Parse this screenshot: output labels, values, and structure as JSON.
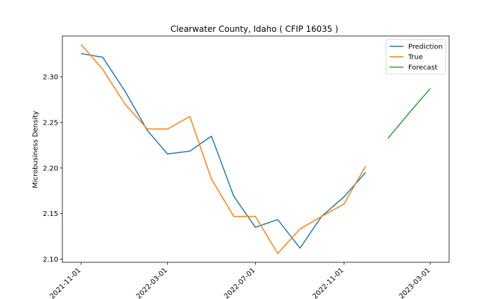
{
  "chart_data": {
    "type": "line",
    "title": "Clearwater County, Idaho ( CFIP 16035 )",
    "xlabel": "",
    "ylabel": "Microbusiness Density",
    "x_ticks": [
      "2021-11-01",
      "2022-03-01",
      "2022-07-01",
      "2022-11-01",
      "2023-03-01"
    ],
    "y_ticks": [
      "2.10",
      "2.15",
      "2.20",
      "2.25",
      "2.30"
    ],
    "xlim": [
      "2021-10-06",
      "2023-03-27"
    ],
    "ylim": [
      2.0966,
      2.3448
    ],
    "grid": false,
    "legend_position": "top-right",
    "series": [
      {
        "name": "Prediction",
        "color": "#1f77b4",
        "x": [
          "2021-11-01",
          "2021-12-01",
          "2022-01-01",
          "2022-02-01",
          "2022-03-01",
          "2022-04-01",
          "2022-05-01",
          "2022-06-01",
          "2022-07-01",
          "2022-08-01",
          "2022-09-01",
          "2022-10-01",
          "2022-11-01",
          "2022-12-01"
        ],
        "y": [
          2.3255,
          2.3215,
          2.2842,
          2.2412,
          2.2155,
          2.2185,
          2.235,
          2.169,
          2.135,
          2.1435,
          2.1122,
          2.147,
          2.1683,
          2.1952
        ]
      },
      {
        "name": "True",
        "color": "#ff7f0e",
        "x": [
          "2021-11-01",
          "2021-12-01",
          "2022-01-01",
          "2022-02-01",
          "2022-03-01",
          "2022-04-01",
          "2022-05-01",
          "2022-06-01",
          "2022-07-01",
          "2022-08-01",
          "2022-09-01",
          "2022-10-01",
          "2022-11-01",
          "2022-12-01"
        ],
        "y": [
          2.3355,
          2.3083,
          2.27,
          2.2428,
          2.2428,
          2.2565,
          2.1878,
          2.147,
          2.147,
          2.1063,
          2.1332,
          2.147,
          2.1605,
          2.202
        ]
      },
      {
        "name": "Forecast",
        "color": "#2ca02c",
        "x": [
          "2023-01-01",
          "2023-02-01",
          "2023-03-01"
        ],
        "y": [
          2.2325,
          2.2618,
          2.2873
        ]
      }
    ]
  }
}
